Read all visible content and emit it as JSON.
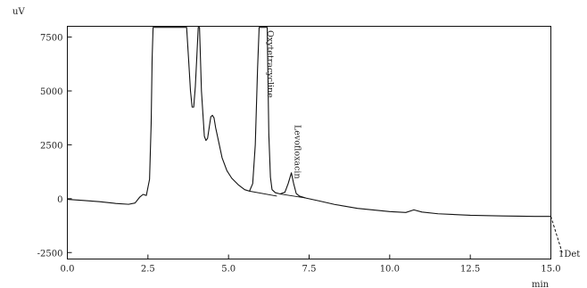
{
  "chart_data": {
    "type": "line",
    "title": "",
    "xlabel": "min",
    "ylabel": "uV",
    "xlim": [
      0.0,
      15.0
    ],
    "ylim": [
      -2800,
      8000
    ],
    "x_ticks": [
      0.0,
      2.5,
      5.0,
      7.5,
      10.0,
      12.5,
      15.0
    ],
    "x_tick_labels": [
      "0.0",
      "2.5",
      "5.0",
      "7.5",
      "10.0",
      "12.5",
      "15.0"
    ],
    "y_ticks": [
      7500,
      5000,
      2500,
      0,
      -2500
    ],
    "y_tick_labels": [
      "7500",
      "5000",
      "2500",
      "0",
      "-2500"
    ],
    "grid": false,
    "detector_label": "1Det",
    "series": [
      {
        "x": [
          0.0,
          0.5,
          1.0,
          1.5,
          1.9,
          2.1,
          2.25,
          2.35,
          2.45,
          2.55,
          2.6,
          2.63,
          2.66,
          2.7,
          3.7,
          3.76,
          3.82,
          3.87,
          3.92,
          3.97,
          4.02,
          4.06,
          4.1,
          4.16,
          4.25,
          4.3,
          4.35,
          4.4,
          4.45,
          4.5,
          4.55,
          4.6,
          4.7,
          4.8,
          4.95,
          5.1,
          5.3,
          5.5,
          5.65,
          5.75,
          5.83,
          5.9,
          5.95,
          6.0,
          6.2,
          6.25,
          6.3,
          6.35,
          6.45,
          6.6,
          6.75,
          6.85,
          6.95,
          7.02,
          7.1,
          7.2,
          7.4,
          7.8,
          8.3,
          9.0,
          10.0,
          10.5,
          10.75,
          11.0,
          11.5,
          12.5,
          13.5,
          14.5,
          15.0
        ],
        "y": [
          -30,
          -80,
          -140,
          -220,
          -260,
          -200,
          80,
          200,
          150,
          900,
          3500,
          6500,
          7950,
          7950,
          7950,
          6500,
          5000,
          4250,
          4250,
          5200,
          6700,
          7950,
          7950,
          5000,
          2900,
          2700,
          2800,
          3300,
          3800,
          3870,
          3750,
          3300,
          2600,
          1900,
          1300,
          950,
          650,
          420,
          350,
          700,
          2500,
          6000,
          7950,
          7950,
          7950,
          3000,
          1000,
          420,
          280,
          220,
          300,
          700,
          1200,
          700,
          240,
          120,
          30,
          -100,
          -270,
          -450,
          -600,
          -640,
          -520,
          -620,
          -700,
          -770,
          -800,
          -820,
          -820
        ]
      }
    ],
    "peaks": [
      {
        "label": "Oxytetracycline",
        "x": 6.1
      },
      {
        "label": "Levofloxacin",
        "x": 6.95
      }
    ],
    "baseline_segments": [
      {
        "x": [
          5.65,
          6.5
        ],
        "y": [
          350,
          120
        ]
      },
      {
        "x": [
          6.6,
          7.4
        ],
        "y": [
          220,
          30
        ]
      }
    ],
    "detector_tail": {
      "x": [
        15.0,
        15.35
      ],
      "y": [
        -820,
        -2500
      ]
    }
  }
}
